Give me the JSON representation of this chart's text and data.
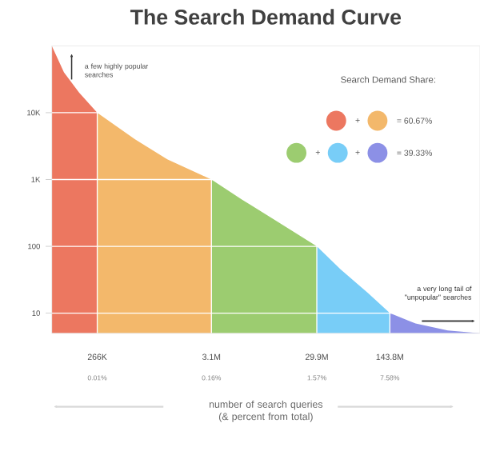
{
  "chart_data": {
    "type": "area",
    "title": "The Search Demand Curve",
    "xlabel": "number of search queries (& percent from total)",
    "annotations": [
      "a few highly popular searches",
      "Search Demand Share:",
      "+",
      "= 60.67%",
      "+",
      "+",
      "= 39.33%",
      "a very long tail of \"unpopular\" searches",
      "0.01%",
      "0.16%",
      "1.57%",
      "7.58%"
    ],
    "series": [
      {
        "color": "#ec7760",
        "x": [
          100000,
          130000,
          180000,
          266000
        ],
        "values": [
          100000,
          40000,
          20000,
          10000
        ]
      },
      {
        "color": "#f3b86b",
        "x": [
          266000,
          600000,
          1200000,
          3100000
        ],
        "values": [
          10000,
          4000,
          2000,
          1000
        ]
      },
      {
        "color": "#9ccc70",
        "x": [
          3100000,
          6000000,
          12000000,
          29900000
        ],
        "values": [
          1000,
          500,
          250,
          100
        ]
      },
      {
        "color": "#78cdf7",
        "x": [
          29900000,
          50000000,
          90000000,
          143800000
        ],
        "values": [
          100,
          45,
          20,
          10
        ]
      },
      {
        "color": "#8c90e6",
        "x": [
          143800000,
          250000000,
          500000000,
          1000000000
        ],
        "values": [
          10,
          7,
          5.5,
          5
        ]
      }
    ],
    "xlim": [
      100000,
      1000000000
    ],
    "ylim": [
      5,
      100000
    ],
    "xticks": [
      {
        "value": 266000,
        "label": "266K"
      },
      {
        "value": 3100000,
        "label": "3.1M"
      },
      {
        "value": 29900000,
        "label": "29.9M"
      },
      {
        "value": 143800000,
        "label": "143.8M"
      }
    ],
    "yticks": [
      10,
      100,
      {
        "value": 1000,
        "label": "1K"
      },
      {
        "value": 10000,
        "label": "10K"
      }
    ],
    "log": "xy",
    "grid": true
  }
}
